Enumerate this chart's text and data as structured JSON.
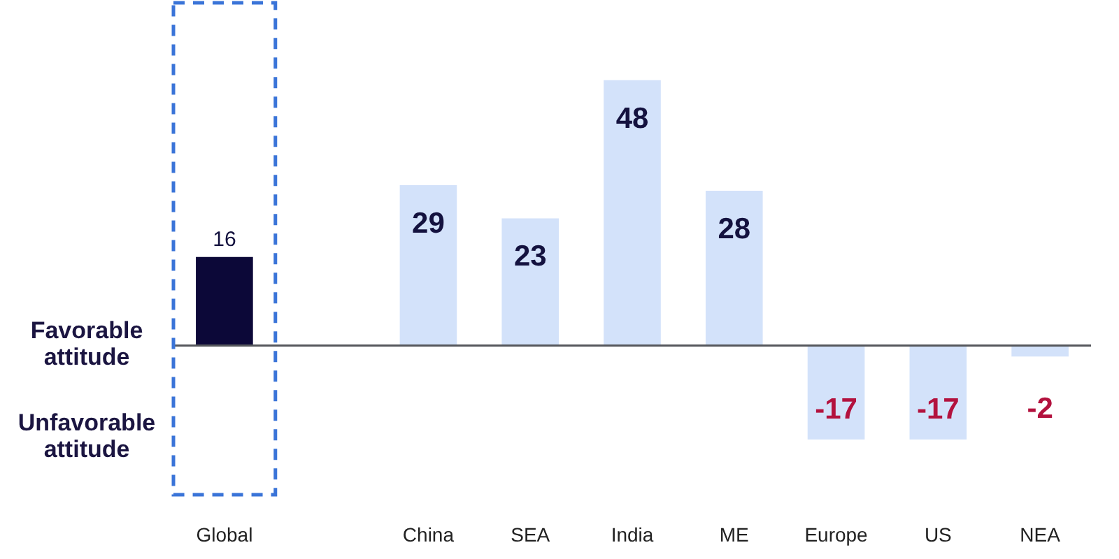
{
  "chart_data": {
    "type": "bar",
    "categories": [
      "Global",
      null,
      "China",
      "SEA",
      "India",
      "ME",
      "Europe",
      "US",
      "NEA"
    ],
    "values": [
      16,
      null,
      29,
      23,
      48,
      28,
      -17,
      -17,
      -2
    ],
    "colors": [
      "#0c0838",
      null,
      "#d3e2fa",
      "#d3e2fa",
      "#d3e2fa",
      "#d3e2fa",
      "#d3e2fa",
      "#d3e2fa",
      "#d3e2fa"
    ],
    "ylim": [
      -27,
      62
    ],
    "tick_labels": "x",
    "data_labels": true,
    "annotations": [
      "Favorable attitude",
      "Unfavorable attitude"
    ]
  }
}
